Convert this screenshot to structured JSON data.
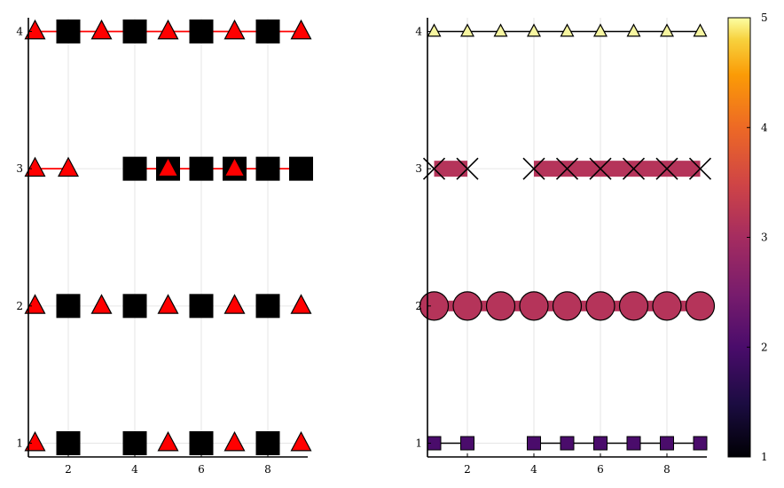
{
  "chart_data": [
    {
      "type": "scatter",
      "title": "",
      "xlabel": "",
      "ylabel": "",
      "xlim": [
        0.8,
        9.2
      ],
      "ylim": [
        0.9,
        4.1
      ],
      "grid": true,
      "legend": "none",
      "xticks": [
        2,
        4,
        6,
        8
      ],
      "yticks": [
        1,
        2,
        3,
        4
      ],
      "xtick_labels": [
        "2",
        "4",
        "6",
        "8"
      ],
      "ytick_labels": [
        "1",
        "2",
        "3",
        "4"
      ],
      "line_color": "#ff0000",
      "marker_colors": {
        "triangle": "#ff0000",
        "square": "#000000"
      },
      "rows": [
        {
          "y": 1,
          "line": false,
          "x": [
            1,
            2,
            4,
            5,
            6,
            7,
            8,
            9
          ],
          "markers": [
            "triangle",
            "square",
            "square",
            "triangle",
            "square",
            "triangle",
            "square",
            "triangle"
          ]
        },
        {
          "y": 2,
          "line": false,
          "x": [
            1,
            2,
            3,
            4,
            5,
            6,
            7,
            8,
            9
          ],
          "markers": [
            "triangle",
            "square",
            "triangle",
            "square",
            "triangle",
            "square",
            "triangle",
            "square",
            "triangle"
          ]
        },
        {
          "y": 3,
          "line": true,
          "segments": [
            [
              1,
              2
            ],
            [
              4,
              9
            ]
          ],
          "x": [
            1,
            2,
            4,
            5,
            6,
            7,
            8,
            9
          ],
          "markers": [
            "triangle",
            "triangle",
            "square",
            "square+triangle",
            "square",
            "square+triangle",
            "square",
            "square"
          ]
        },
        {
          "y": 4,
          "line": true,
          "segments": [
            [
              1,
              9
            ]
          ],
          "x": [
            1,
            2,
            3,
            4,
            5,
            6,
            7,
            8,
            9
          ],
          "markers": [
            "triangle",
            "square",
            "triangle",
            "square",
            "triangle",
            "square",
            "triangle",
            "square",
            "triangle"
          ]
        }
      ]
    },
    {
      "type": "scatter",
      "title": "",
      "xlabel": "",
      "ylabel": "",
      "xlim": [
        0.8,
        9.2
      ],
      "ylim": [
        0.9,
        4.1
      ],
      "grid": true,
      "legend": "none",
      "xticks": [
        2,
        4,
        6,
        8
      ],
      "yticks": [
        1,
        2,
        3,
        4
      ],
      "xtick_labels": [
        "2",
        "4",
        "6",
        "8"
      ],
      "ytick_labels": [
        "1",
        "2",
        "3",
        "4"
      ],
      "colormap": "inferno",
      "colorbar": {
        "range": [
          1,
          5
        ],
        "ticks": [
          1,
          2,
          3,
          4,
          5
        ],
        "tick_labels": [
          "1",
          "2",
          "3",
          "4",
          "5"
        ]
      },
      "rows": [
        {
          "y": 1,
          "marker": "square",
          "value": 2,
          "line": true,
          "line_color": "#000000",
          "line_width": 1.5,
          "segments": [
            [
              1,
              2
            ],
            [
              4,
              9
            ]
          ],
          "x": [
            1,
            2,
            4,
            5,
            6,
            7,
            8,
            9
          ]
        },
        {
          "y": 2,
          "marker": "circle",
          "value": 3,
          "line": true,
          "line_color": "#b5345a",
          "line_width": 12,
          "segments": [
            [
              1,
              9
            ]
          ],
          "x": [
            1,
            2,
            3,
            4,
            5,
            6,
            7,
            8,
            9
          ]
        },
        {
          "y": 3,
          "marker": "x",
          "value": 3,
          "line": true,
          "line_color": "#b5345a",
          "line_width": 18,
          "segments": [
            [
              1,
              2
            ],
            [
              4,
              9
            ]
          ],
          "x": [
            1,
            2,
            4,
            5,
            6,
            7,
            8,
            9
          ]
        },
        {
          "y": 4,
          "marker": "triangle",
          "value": 5,
          "line": true,
          "line_color": "#000000",
          "line_width": 1.5,
          "segments": [
            [
              1,
              9
            ]
          ],
          "x": [
            1,
            2,
            3,
            4,
            5,
            6,
            7,
            8,
            9
          ]
        }
      ],
      "value_colors": {
        "2": "#4a0c6b",
        "3": "#b5345a",
        "5": "#f6f5a0"
      }
    }
  ]
}
